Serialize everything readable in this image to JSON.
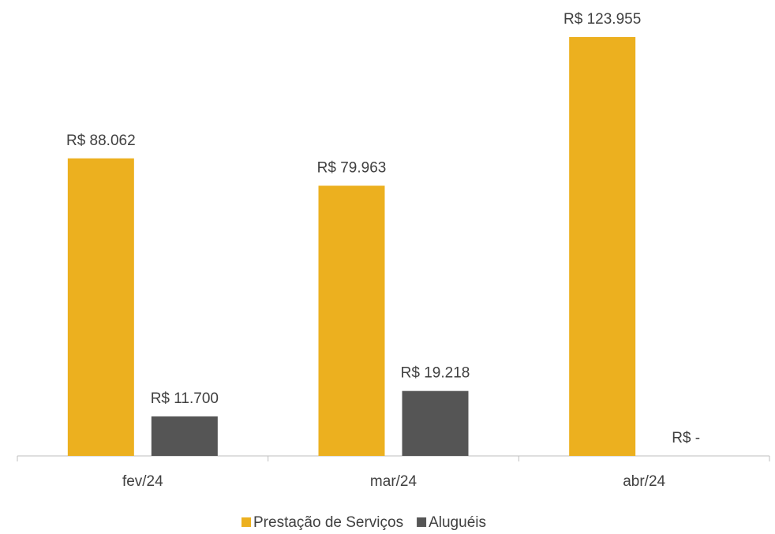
{
  "chart_data": {
    "type": "bar",
    "categories": [
      "fev/24",
      "mar/24",
      "abr/24"
    ],
    "series": [
      {
        "name": "Prestação de Serviços",
        "color": "#ecb01f",
        "values": [
          88062,
          79963,
          123955
        ],
        "value_labels": [
          "R$ 88.062",
          "R$ 79.963",
          "R$ 123.955"
        ]
      },
      {
        "name": "Aluguéis",
        "color": "#555555",
        "values": [
          11700,
          19218,
          0
        ],
        "value_labels": [
          "R$ 11.700",
          "R$ 19.218",
          "R$ -"
        ]
      }
    ],
    "legend": "bottom"
  }
}
